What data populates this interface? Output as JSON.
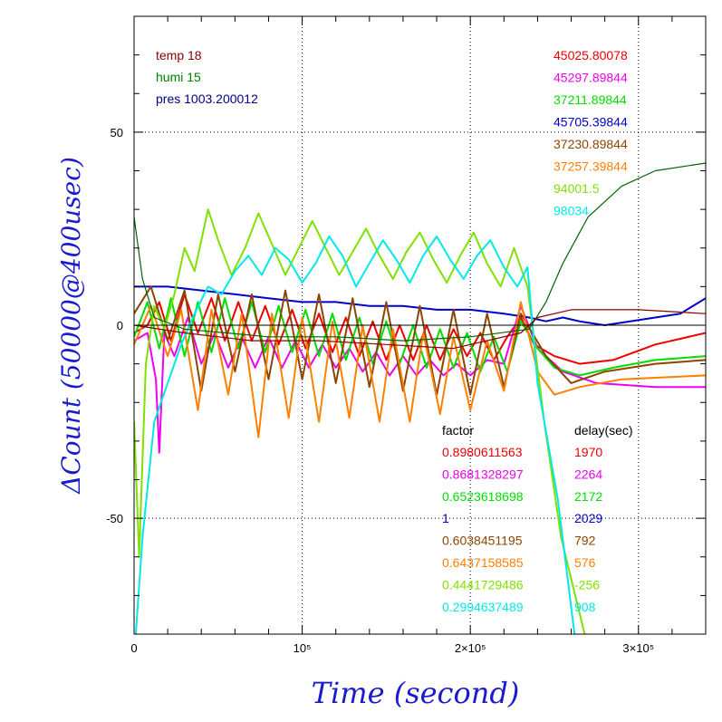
{
  "chart_data": {
    "type": "line",
    "title": "",
    "xlabel": "Time (second)",
    "ylabel": "ΔCount (50000@400usec)",
    "xlim": [
      0,
      340000
    ],
    "ylim": [
      -80,
      80
    ],
    "x_ticks": [
      {
        "value": 0,
        "label": "0"
      },
      {
        "value": 100000,
        "label": "10⁵"
      },
      {
        "value": 200000,
        "label": "2×10⁵"
      },
      {
        "value": 300000,
        "label": "3×10⁵"
      }
    ],
    "y_ticks": [
      {
        "value": 50,
        "label": "50"
      },
      {
        "value": 0,
        "label": "0"
      },
      {
        "value": -50,
        "label": "-50"
      }
    ],
    "grid": true,
    "env": [
      {
        "text": "temp 18",
        "color": "#8b0000"
      },
      {
        "text": "humi 15",
        "color": "#008000"
      },
      {
        "text": "pres 1003.200012",
        "color": "#000080"
      }
    ],
    "factor_header": "factor",
    "delay_header": "delay(sec)",
    "series": [
      {
        "value_label": "45025.80078",
        "factor": "0.8980611563",
        "delay": "1970",
        "color": "#ee0000",
        "points": [
          [
            0,
            -2
          ],
          [
            8000,
            0
          ],
          [
            15000,
            6
          ],
          [
            22000,
            -4
          ],
          [
            30000,
            8
          ],
          [
            38000,
            -2
          ],
          [
            46000,
            7
          ],
          [
            54000,
            -4
          ],
          [
            62000,
            6
          ],
          [
            70000,
            -4
          ],
          [
            78000,
            5
          ],
          [
            86000,
            -5
          ],
          [
            94000,
            4
          ],
          [
            102000,
            -6
          ],
          [
            110000,
            3
          ],
          [
            118000,
            -7
          ],
          [
            126000,
            2
          ],
          [
            134000,
            -8
          ],
          [
            142000,
            1
          ],
          [
            150000,
            -9
          ],
          [
            158000,
            0
          ],
          [
            166000,
            -9
          ],
          [
            174000,
            0
          ],
          [
            182000,
            -9
          ],
          [
            190000,
            -1
          ],
          [
            198000,
            -8
          ],
          [
            206000,
            -2
          ],
          [
            214000,
            -9
          ],
          [
            222000,
            -3
          ],
          [
            230000,
            2
          ],
          [
            238000,
            -5
          ],
          [
            250000,
            -8
          ],
          [
            265000,
            -10
          ],
          [
            285000,
            -9
          ],
          [
            310000,
            -5
          ],
          [
            340000,
            -2
          ]
        ]
      },
      {
        "value_label": "45297.89844",
        "factor": "0.8681328297",
        "delay": "2264",
        "color": "#ee00ee",
        "points": [
          [
            0,
            -4
          ],
          [
            8000,
            -2
          ],
          [
            13000,
            -14
          ],
          [
            15000,
            -33
          ],
          [
            18000,
            -2
          ],
          [
            24000,
            -8
          ],
          [
            32000,
            2
          ],
          [
            40000,
            -10
          ],
          [
            48000,
            -2
          ],
          [
            56000,
            -11
          ],
          [
            64000,
            -3
          ],
          [
            72000,
            -11
          ],
          [
            80000,
            -3
          ],
          [
            88000,
            -11
          ],
          [
            96000,
            -4
          ],
          [
            104000,
            -11
          ],
          [
            112000,
            -5
          ],
          [
            120000,
            -11
          ],
          [
            128000,
            -6
          ],
          [
            136000,
            -12
          ],
          [
            144000,
            -7
          ],
          [
            152000,
            -13
          ],
          [
            160000,
            -8
          ],
          [
            168000,
            -13
          ],
          [
            176000,
            -9
          ],
          [
            184000,
            -13
          ],
          [
            192000,
            -10
          ],
          [
            200000,
            -13
          ],
          [
            210000,
            -9
          ],
          [
            220000,
            -10
          ],
          [
            230000,
            5
          ],
          [
            240000,
            -6
          ],
          [
            255000,
            -12
          ],
          [
            275000,
            -15
          ],
          [
            310000,
            -16
          ],
          [
            340000,
            -16
          ]
        ]
      },
      {
        "value_label": "37211.89844",
        "factor": "0.6523618698",
        "delay": "2172",
        "color": "#00dd00",
        "points": [
          [
            0,
            -3
          ],
          [
            8000,
            6
          ],
          [
            15000,
            -6
          ],
          [
            22000,
            7
          ],
          [
            30000,
            -8
          ],
          [
            38000,
            6
          ],
          [
            46000,
            -7
          ],
          [
            54000,
            7
          ],
          [
            62000,
            -6
          ],
          [
            70000,
            6
          ],
          [
            78000,
            -7
          ],
          [
            86000,
            5
          ],
          [
            94000,
            -7
          ],
          [
            102000,
            4
          ],
          [
            110000,
            -8
          ],
          [
            118000,
            3
          ],
          [
            126000,
            -9
          ],
          [
            134000,
            2
          ],
          [
            142000,
            -10
          ],
          [
            150000,
            1
          ],
          [
            158000,
            -10
          ],
          [
            166000,
            0
          ],
          [
            174000,
            -11
          ],
          [
            182000,
            -1
          ],
          [
            190000,
            -11
          ],
          [
            198000,
            -2
          ],
          [
            206000,
            -12
          ],
          [
            214000,
            -3
          ],
          [
            222000,
            -12
          ],
          [
            230000,
            1
          ],
          [
            240000,
            -6
          ],
          [
            250000,
            -11
          ],
          [
            265000,
            -13
          ],
          [
            285000,
            -11
          ],
          [
            310000,
            -9
          ],
          [
            340000,
            -8
          ]
        ]
      },
      {
        "value_label": "45705.39844",
        "factor": "1",
        "delay": "2029",
        "color": "#0000cc",
        "points": [
          [
            0,
            10
          ],
          [
            20000,
            10
          ],
          [
            40000,
            9
          ],
          [
            60000,
            8
          ],
          [
            80000,
            7
          ],
          [
            100000,
            6
          ],
          [
            120000,
            6
          ],
          [
            140000,
            5
          ],
          [
            160000,
            5
          ],
          [
            180000,
            4
          ],
          [
            200000,
            4
          ],
          [
            220000,
            3
          ],
          [
            235000,
            2
          ],
          [
            245000,
            1
          ],
          [
            255000,
            2
          ],
          [
            265000,
            1
          ],
          [
            280000,
            0
          ],
          [
            295000,
            1
          ],
          [
            310000,
            2
          ],
          [
            325000,
            3
          ],
          [
            340000,
            7
          ]
        ]
      },
      {
        "value_label": "37230.89844",
        "factor": "0.6038451195",
        "delay": "792",
        "color": "#8b4500",
        "points": [
          [
            0,
            3
          ],
          [
            10000,
            10
          ],
          [
            20000,
            -4
          ],
          [
            30000,
            9
          ],
          [
            40000,
            -17
          ],
          [
            50000,
            8
          ],
          [
            60000,
            -12
          ],
          [
            70000,
            8
          ],
          [
            80000,
            -14
          ],
          [
            90000,
            9
          ],
          [
            100000,
            -14
          ],
          [
            110000,
            8
          ],
          [
            120000,
            -15
          ],
          [
            130000,
            7
          ],
          [
            140000,
            -16
          ],
          [
            150000,
            6
          ],
          [
            160000,
            -17
          ],
          [
            170000,
            5
          ],
          [
            180000,
            -18
          ],
          [
            190000,
            4
          ],
          [
            200000,
            -18
          ],
          [
            210000,
            3
          ],
          [
            220000,
            -16
          ],
          [
            230000,
            3
          ],
          [
            245000,
            -8
          ],
          [
            260000,
            -15
          ],
          [
            280000,
            -12
          ],
          [
            310000,
            -10
          ],
          [
            340000,
            -9
          ]
        ]
      },
      {
        "value_label": "37257.39844",
        "factor": "0.6437158585",
        "delay": "576",
        "color": "#ff8000",
        "points": [
          [
            0,
            -5
          ],
          [
            10000,
            5
          ],
          [
            20000,
            -8
          ],
          [
            28000,
            4
          ],
          [
            38000,
            -22
          ],
          [
            46000,
            4
          ],
          [
            56000,
            -18
          ],
          [
            64000,
            3
          ],
          [
            74000,
            -29
          ],
          [
            82000,
            3
          ],
          [
            92000,
            -24
          ],
          [
            100000,
            2
          ],
          [
            110000,
            -25
          ],
          [
            118000,
            1
          ],
          [
            128000,
            -24
          ],
          [
            136000,
            0
          ],
          [
            146000,
            -25
          ],
          [
            154000,
            -1
          ],
          [
            164000,
            -25
          ],
          [
            172000,
            -2
          ],
          [
            182000,
            -23
          ],
          [
            190000,
            -3
          ],
          [
            200000,
            -22
          ],
          [
            210000,
            -4
          ],
          [
            220000,
            -17
          ],
          [
            230000,
            6
          ],
          [
            240000,
            -12
          ],
          [
            250000,
            -18
          ],
          [
            265000,
            -16
          ],
          [
            290000,
            -14
          ],
          [
            340000,
            -13
          ]
        ]
      },
      {
        "value_label": "94001.5",
        "factor": "0.4441729486",
        "delay": "-256",
        "color": "#80e000",
        "points": [
          [
            0,
            -25
          ],
          [
            3000,
            -60
          ],
          [
            7000,
            -10
          ],
          [
            12000,
            5
          ],
          [
            18000,
            -1
          ],
          [
            24000,
            8
          ],
          [
            30000,
            20
          ],
          [
            36000,
            14
          ],
          [
            44000,
            30
          ],
          [
            50000,
            22
          ],
          [
            58000,
            13
          ],
          [
            66000,
            20
          ],
          [
            74000,
            29
          ],
          [
            82000,
            21
          ],
          [
            90000,
            13
          ],
          [
            98000,
            20
          ],
          [
            106000,
            27
          ],
          [
            114000,
            20
          ],
          [
            122000,
            13
          ],
          [
            130000,
            19
          ],
          [
            138000,
            25
          ],
          [
            146000,
            18
          ],
          [
            154000,
            12
          ],
          [
            162000,
            19
          ],
          [
            170000,
            24
          ],
          [
            178000,
            17
          ],
          [
            186000,
            11
          ],
          [
            194000,
            18
          ],
          [
            202000,
            24
          ],
          [
            210000,
            16
          ],
          [
            218000,
            10
          ],
          [
            226000,
            20
          ],
          [
            234000,
            10
          ],
          [
            244000,
            -25
          ],
          [
            254000,
            -55
          ],
          [
            268000,
            -80
          ]
        ]
      },
      {
        "value_label": "98034",
        "factor": "0.2994637489",
        "delay": "908",
        "color": "#00e8e8",
        "points": [
          [
            1000,
            -80
          ],
          [
            5000,
            -55
          ],
          [
            12000,
            -25
          ],
          [
            20000,
            -15
          ],
          [
            28000,
            -5
          ],
          [
            36000,
            3
          ],
          [
            44000,
            10
          ],
          [
            52000,
            8
          ],
          [
            60000,
            14
          ],
          [
            68000,
            18
          ],
          [
            76000,
            13
          ],
          [
            84000,
            20
          ],
          [
            92000,
            17
          ],
          [
            100000,
            11
          ],
          [
            108000,
            16
          ],
          [
            116000,
            23
          ],
          [
            124000,
            18
          ],
          [
            132000,
            10
          ],
          [
            140000,
            16
          ],
          [
            148000,
            22
          ],
          [
            156000,
            17
          ],
          [
            164000,
            11
          ],
          [
            172000,
            18
          ],
          [
            180000,
            23
          ],
          [
            188000,
            17
          ],
          [
            196000,
            12
          ],
          [
            204000,
            18
          ],
          [
            212000,
            22
          ],
          [
            220000,
            15
          ],
          [
            228000,
            10
          ],
          [
            234000,
            15
          ],
          [
            240000,
            -15
          ],
          [
            252000,
            -45
          ],
          [
            262000,
            -80
          ]
        ]
      },
      {
        "value_label": "",
        "factor": "",
        "delay": "",
        "color": "#006400",
        "points": [
          [
            0,
            28
          ],
          [
            5000,
            12
          ],
          [
            12000,
            2
          ],
          [
            30000,
            -1
          ],
          [
            80000,
            -3
          ],
          [
            120000,
            -3
          ],
          [
            160000,
            -4
          ],
          [
            200000,
            -3
          ],
          [
            235000,
            -1
          ],
          [
            245000,
            6
          ],
          [
            255000,
            16
          ],
          [
            270000,
            28
          ],
          [
            290000,
            36
          ],
          [
            310000,
            40
          ],
          [
            340000,
            42
          ]
        ]
      },
      {
        "value_label": "",
        "factor": "",
        "delay": "",
        "color": "#8b0000",
        "points": [
          [
            0,
            0
          ],
          [
            30000,
            -2
          ],
          [
            70000,
            -4
          ],
          [
            110000,
            -4
          ],
          [
            150000,
            -5
          ],
          [
            190000,
            -6
          ],
          [
            230000,
            -2
          ],
          [
            240000,
            2
          ],
          [
            260000,
            4
          ],
          [
            300000,
            4
          ],
          [
            340000,
            3
          ]
        ]
      }
    ]
  }
}
